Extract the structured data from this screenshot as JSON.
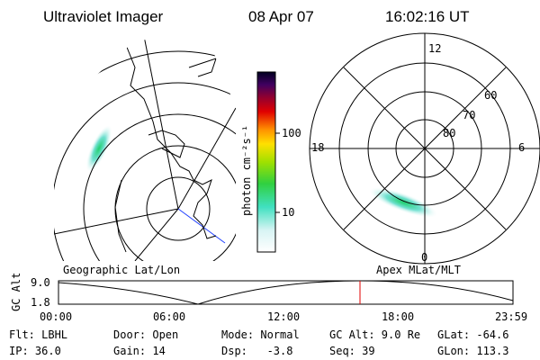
{
  "header": {
    "instrument": "Ultraviolet Imager",
    "date": "08 Apr 07",
    "time": "16:02:16 UT"
  },
  "colorbar": {
    "label": "photon cm⁻²s⁻¹",
    "ticks": [
      "100",
      "10"
    ]
  },
  "polar": {
    "hours": [
      "12",
      "18",
      "6",
      "0"
    ],
    "latitudes": [
      "60",
      "70",
      "80"
    ]
  },
  "altitude": {
    "axis_label": "GC Alt",
    "y_labels": [
      "9.0",
      "1.8"
    ],
    "left_label": "Geographic Lat/Lon",
    "right_label": "Apex MLat/MLT",
    "x_labels": [
      "00:00",
      "06:00",
      "12:00",
      "18:00",
      "23:59"
    ]
  },
  "info": {
    "rows": [
      [
        "Flt: LBHL",
        "Door: Open",
        "Mode: Normal",
        "GC Alt: 9.0 Re",
        "GLat: -64.6"
      ],
      [
        "IP: 36.0",
        "Gain: 14",
        "Dsp:   -3.8",
        "Seq: 39",
        "GLon: 113.3"
      ]
    ]
  }
}
